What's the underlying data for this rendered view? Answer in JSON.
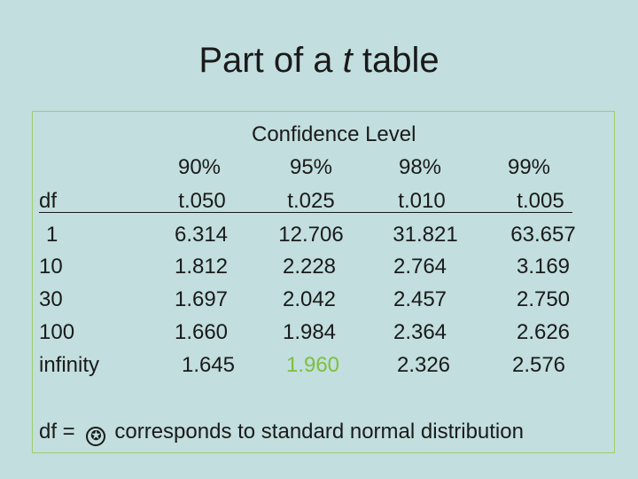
{
  "title": {
    "prefix": "Part of a ",
    "italic": "t",
    "suffix": " table"
  },
  "confidence_header": "Confidence Level",
  "df_label": "df",
  "percents": [
    "90%",
    "95%",
    "98%",
    "99%"
  ],
  "tcols": [
    "t.050",
    "t.025",
    "t.010",
    "t.005"
  ],
  "rows": [
    {
      "df": "1",
      "values": [
        "6.314",
        "12.706",
        "31.821",
        "63.657"
      ]
    },
    {
      "df": "10",
      "values": [
        "1.812",
        "2.228",
        "2.764",
        "3.169"
      ]
    },
    {
      "df": "30",
      "values": [
        "1.697",
        "2.042",
        "2.457",
        "2.750"
      ]
    },
    {
      "df": "100",
      "values": [
        "1.660",
        "1.984",
        "2.364",
        "2.626"
      ]
    },
    {
      "df": "infinity",
      "values": [
        "1.645",
        "1.960",
        "2.326",
        "2.576"
      ]
    }
  ],
  "highlight_color": "#7fbf3f",
  "footnote": {
    "prefix": "df = ",
    "symbol": "✪",
    "text": "corresponds to standard normal distribution"
  }
}
